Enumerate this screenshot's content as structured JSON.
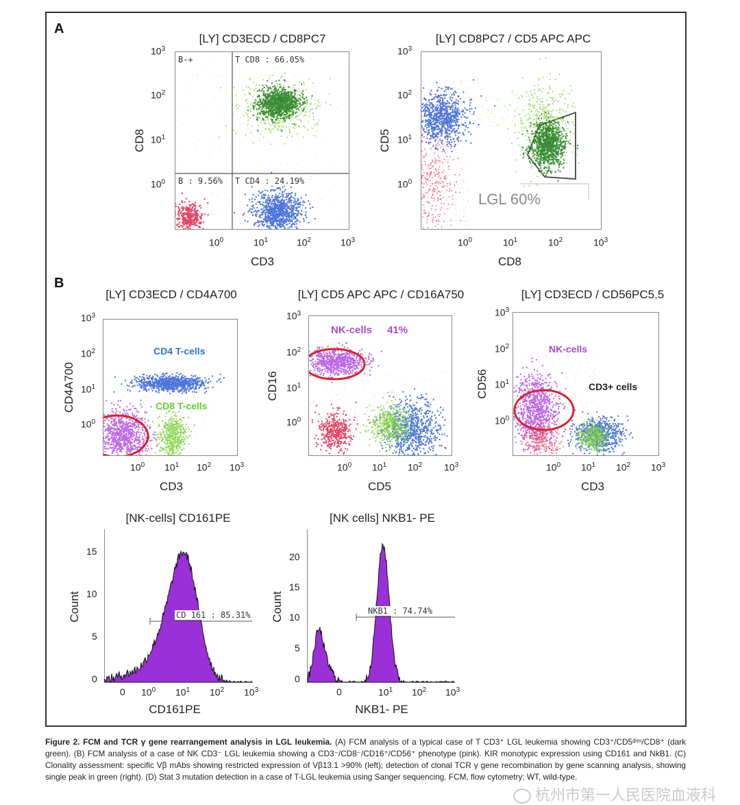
{
  "panels": {
    "A": "A",
    "B": "B"
  },
  "plots": {
    "a1": {
      "title": "[LY] CD3ECD / CD8PC7",
      "xlabel": "CD3",
      "ylabel": "CD8",
      "gates": {
        "tl": "B-+",
        "tr": "T CD8 : 66.05%",
        "bl": "B : 9.56%",
        "br": "T CD4 : 24.19%"
      }
    },
    "a2": {
      "title": "[LY] CD8PC7 / CD5 APC APC",
      "xlabel": "CD8",
      "ylabel": "CD5",
      "annotation": "LGL 60%"
    },
    "b1": {
      "title": "[LY] CD3ECD / CD4A700",
      "xlabel": "CD3",
      "ylabel": "CD4A700",
      "labels": {
        "cd4": "CD4 T-cells",
        "cd8": "CD8 T-cells"
      }
    },
    "b2": {
      "title": "[LY] CD5 APC APC / CD16A750",
      "xlabel": "CD5",
      "ylabel": "CD16",
      "labels": {
        "nk": "NK-cells",
        "pct": "41%"
      }
    },
    "b3": {
      "title": "[LY] CD3ECD / CD56PC5.5",
      "xlabel": "CD3",
      "ylabel": "CD56",
      "labels": {
        "nk": "NK-cells",
        "cd3": "CD3+ cells"
      }
    },
    "h1": {
      "title": "[NK-cells] CD161PE",
      "xlabel": "CD161PE",
      "ylabel": "Count",
      "gate": "CD 161 : 85.31%",
      "yticks": [
        "0",
        "5",
        "10",
        "15"
      ]
    },
    "h2": {
      "title": "[NK cells] NKB1- PE",
      "xlabel": "NKB1- PE",
      "ylabel": "Count",
      "gate": "NKB1 : 74.74%",
      "yticks": [
        "0",
        "5",
        "10",
        "15",
        "20"
      ]
    }
  },
  "log_ticks": {
    "base": "10",
    "exps": [
      "0",
      "1",
      "2",
      "3"
    ],
    "zero": "0"
  },
  "caption": {
    "bold": "Figure 2. FCM and TCR γ gene rearrangement analysis in LGL leukemia.",
    "text": " (A) FCM analysis of a typical case of T CD3⁺ LGL leukemia showing CD3⁺/CD5ᵈⁱᵐ/CD8⁺ (dark green). (B) FCM analysis of a case of NK CD3⁻ LGL leukemia showing a CD3⁻/CD8⁻/CD16⁺/CD56⁺ phenotype (pink). KIR monotypic expression using CD161 and NkB1. (C) Clonality assessment: specific Vβ mAbs showing restricted expression of Vβ13.1 >90% (left); detection of clonal TCR γ gene recombination by gene scanning analysis, showing single peak in green (right). (D) Stat 3 mutation detection in a case of T-LGL leukemia using Sanger sequencing. FCM, flow cytometry; WT, wild-type."
  },
  "watermark": "杭州市第一人民医院血液科",
  "colors": {
    "red": "#e0234a",
    "pink": "#e8739a",
    "blue": "#2f5fd6",
    "light_green": "#7ed13e",
    "dark_green": "#1d7a1d",
    "purple": "#b14fe0",
    "magenta": "#c23bd6",
    "gate_red": "#d8202a",
    "hist_fill": "#9b30d9",
    "label_blue": "#2f73c8",
    "label_green": "#5fd02a",
    "label_purple": "#a64ad8"
  }
}
